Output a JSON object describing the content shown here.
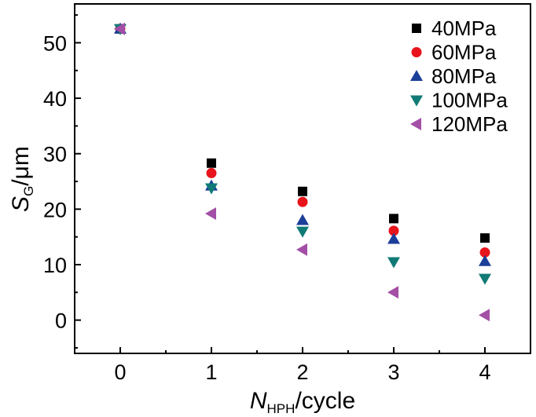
{
  "chart_data": {
    "type": "scatter",
    "x": [
      0,
      1,
      2,
      3,
      4
    ],
    "xticks": [
      0,
      1,
      2,
      3,
      4
    ],
    "yticks": [
      0,
      10,
      20,
      30,
      40,
      50
    ],
    "xlim": [
      -0.5,
      4.5
    ],
    "ylim": [
      -6,
      57
    ],
    "xlabel": {
      "main": "N",
      "sub": "HPH",
      "rest": "/cycle"
    },
    "ylabel": {
      "main": "S",
      "sub": "G",
      "rest": "/μm"
    },
    "legend_position": "top-right",
    "series": [
      {
        "name": "40MPa",
        "marker": "square",
        "color": "#000000",
        "values": [
          52.5,
          28.3,
          23.2,
          18.3,
          14.8
        ]
      },
      {
        "name": "60MPa",
        "marker": "circle",
        "color": "#e8141c",
        "values": [
          52.5,
          26.5,
          21.3,
          16.1,
          12.2
        ]
      },
      {
        "name": "80MPa",
        "marker": "triangle-up",
        "color": "#1c3f99",
        "values": [
          52.5,
          24.2,
          18.0,
          14.6,
          10.6
        ]
      },
      {
        "name": "100MPa",
        "marker": "triangle-down",
        "color": "#117a76",
        "values": [
          52.5,
          23.8,
          16.0,
          10.5,
          7.5
        ]
      },
      {
        "name": "120MPa",
        "marker": "triangle-left",
        "color": "#a34fa6",
        "values": [
          52.5,
          19.2,
          12.7,
          5.0,
          0.9
        ]
      }
    ]
  }
}
